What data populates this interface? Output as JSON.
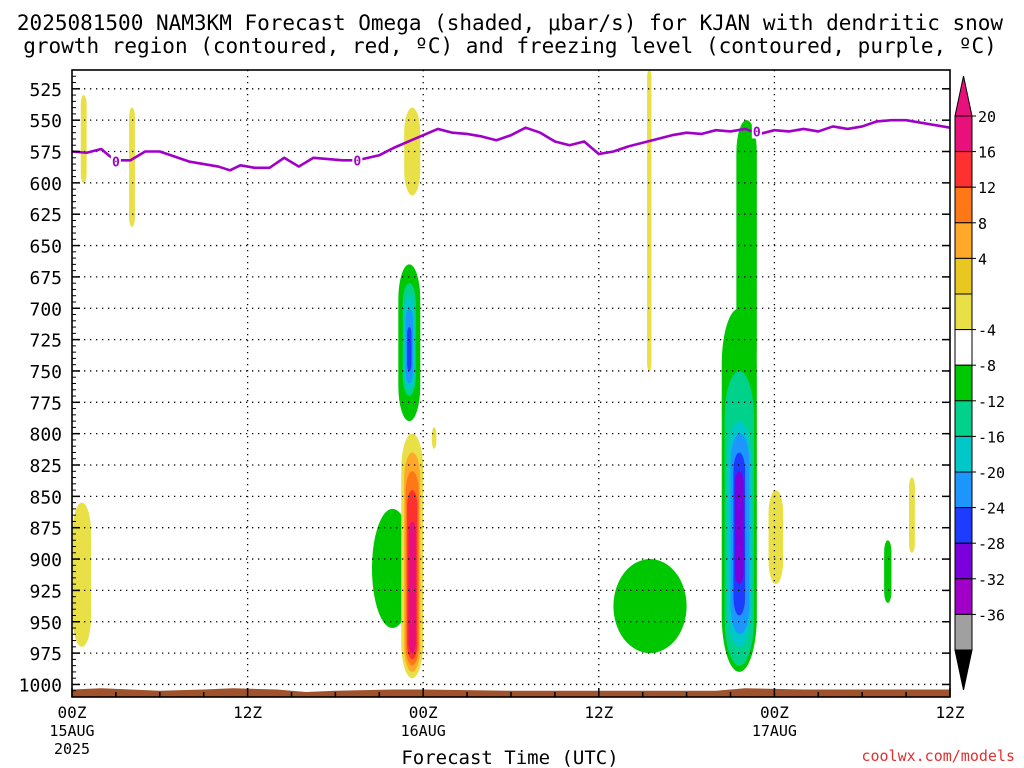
{
  "title": {
    "line1": "2025081500 NAM3KM Forecast Omega (shaded, μbar/s) for KJAN with dendritic snow",
    "line2": "growth region (contoured, red, ºC) and freezing level (contoured, purple, ºC)"
  },
  "xaxis": {
    "label": "Forecast Time (UTC)",
    "ticks": [
      {
        "hours": 0,
        "line1": "00Z",
        "line2": "15AUG",
        "line3": "2025"
      },
      {
        "hours": 12,
        "line1": "12Z",
        "line2": "",
        "line3": ""
      },
      {
        "hours": 24,
        "line1": "00Z",
        "line2": "16AUG",
        "line3": ""
      },
      {
        "hours": 36,
        "line1": "12Z",
        "line2": "",
        "line3": ""
      },
      {
        "hours": 48,
        "line1": "00Z",
        "line2": "17AUG",
        "line3": ""
      },
      {
        "hours": 60,
        "line1": "12Z",
        "line2": "",
        "line3": ""
      }
    ]
  },
  "watermark": "coolwx.com/models",
  "chart_data": {
    "type": "heatmap",
    "title": "2025081500 NAM3KM Forecast Omega (shaded, μbar/s) for KJAN with dendritic snow growth region (contoured, red, ºC) and freezing level (contoured, purple, ºC)",
    "xlabel": "Forecast Time (UTC)",
    "ylabel": "",
    "xlim_hours": [
      0,
      60
    ],
    "ylim_hpa": [
      1010,
      510
    ],
    "y_ticks": [
      525,
      550,
      575,
      600,
      625,
      650,
      675,
      700,
      725,
      750,
      775,
      800,
      825,
      850,
      875,
      900,
      925,
      950,
      975,
      1000
    ],
    "grid": true,
    "colorbar": {
      "labels": [
        "20",
        "16",
        "12",
        "8",
        "4",
        "-4",
        "-8",
        "-12",
        "-16",
        "-20",
        "-24",
        "-28",
        "-32",
        "-36"
      ],
      "bins": [
        {
          "color": "#e8107a"
        },
        {
          "color": "#ff3030"
        },
        {
          "color": "#ff7818"
        },
        {
          "color": "#ffa82a"
        },
        {
          "color": "#e8c820"
        },
        {
          "color": "#e8e046"
        },
        {
          "color": "#ffffff"
        },
        {
          "color": "#00c800"
        },
        {
          "color": "#00d28c"
        },
        {
          "color": "#00c8c8"
        },
        {
          "color": "#1e96ff"
        },
        {
          "color": "#1e3cff"
        },
        {
          "color": "#7a00dc"
        },
        {
          "color": "#a000c8"
        },
        {
          "color": "#a0a0a0"
        }
      ],
      "over_color": "#e8107a",
      "under_color": "#000000"
    },
    "freezing_level": {
      "color": "#a000c8",
      "label": "0",
      "label_positions": [
        [
          3.0,
          583
        ],
        [
          19.5,
          582
        ],
        [
          46.8,
          559
        ]
      ],
      "points": [
        [
          0,
          575
        ],
        [
          1,
          576
        ],
        [
          2,
          573
        ],
        [
          2.5,
          578
        ],
        [
          3,
          582
        ],
        [
          4,
          582
        ],
        [
          5,
          575
        ],
        [
          6,
          575
        ],
        [
          7,
          579
        ],
        [
          8,
          583
        ],
        [
          9,
          585
        ],
        [
          10,
          587
        ],
        [
          10.8,
          590
        ],
        [
          11.5,
          586
        ],
        [
          12.5,
          588
        ],
        [
          13.5,
          588
        ],
        [
          14.5,
          580
        ],
        [
          15.5,
          587
        ],
        [
          16.5,
          580
        ],
        [
          17.5,
          581
        ],
        [
          18.5,
          582
        ],
        [
          19.5,
          582
        ],
        [
          21,
          578
        ],
        [
          22,
          572
        ],
        [
          23,
          567
        ],
        [
          24,
          562
        ],
        [
          25,
          557
        ],
        [
          26,
          560
        ],
        [
          27,
          561
        ],
        [
          28,
          563
        ],
        [
          29,
          566
        ],
        [
          30,
          562
        ],
        [
          31,
          556
        ],
        [
          32,
          560
        ],
        [
          33,
          567
        ],
        [
          34,
          570
        ],
        [
          35,
          567
        ],
        [
          36,
          577
        ],
        [
          37,
          575
        ],
        [
          38,
          571
        ],
        [
          39,
          568
        ],
        [
          40,
          565
        ],
        [
          41,
          562
        ],
        [
          42,
          560
        ],
        [
          43,
          561
        ],
        [
          44,
          558
        ],
        [
          45,
          559
        ],
        [
          46,
          557
        ],
        [
          47,
          561
        ],
        [
          48,
          558
        ],
        [
          49,
          559
        ],
        [
          50,
          557
        ],
        [
          51,
          559
        ],
        [
          52,
          555
        ],
        [
          53,
          557
        ],
        [
          54,
          555
        ],
        [
          55,
          551
        ],
        [
          56,
          550
        ],
        [
          57,
          550
        ],
        [
          58,
          552
        ],
        [
          60,
          556
        ]
      ]
    },
    "terrain": {
      "color": "#a0522d"
    },
    "regions": [
      {
        "x": [
          0.05,
          1.3
        ],
        "y": [
          855,
          970
        ],
        "color": "#e8e046"
      },
      {
        "x": [
          0.6,
          1.0
        ],
        "y": [
          530,
          600
        ],
        "color": "#e8e046"
      },
      {
        "x": [
          3.9,
          4.3
        ],
        "y": [
          540,
          635
        ],
        "color": "#e8e046"
      },
      {
        "x": [
          22.7,
          23.8
        ],
        "y": [
          540,
          610
        ],
        "color": "#e8e046"
      },
      {
        "x": [
          20.5,
          23.3
        ],
        "y": [
          860,
          955
        ],
        "color": "#00c800"
      },
      {
        "x": [
          22.5,
          24.0
        ],
        "y": [
          800,
          995
        ],
        "color": "#e8e046"
      },
      {
        "x": [
          22.7,
          23.8
        ],
        "y": [
          815,
          990
        ],
        "color": "#ffa82a"
      },
      {
        "x": [
          22.8,
          23.7
        ],
        "y": [
          830,
          985
        ],
        "color": "#ff7818"
      },
      {
        "x": [
          22.9,
          23.6
        ],
        "y": [
          845,
          980
        ],
        "color": "#ff3030"
      },
      {
        "x": [
          23.0,
          23.5
        ],
        "y": [
          870,
          975
        ],
        "color": "#e8107a"
      },
      {
        "x": [
          22.3,
          23.8
        ],
        "y": [
          665,
          790
        ],
        "color": "#00c800"
      },
      {
        "x": [
          22.6,
          23.5
        ],
        "y": [
          680,
          770
        ],
        "color": "#00d28c"
      },
      {
        "x": [
          22.7,
          23.4
        ],
        "y": [
          690,
          765
        ],
        "color": "#00c8c8"
      },
      {
        "x": [
          22.8,
          23.3
        ],
        "y": [
          700,
          760
        ],
        "color": "#1e96ff"
      },
      {
        "x": [
          22.9,
          23.2
        ],
        "y": [
          715,
          750
        ],
        "color": "#1e3cff"
      },
      {
        "x": [
          24.6,
          24.9
        ],
        "y": [
          795,
          812
        ],
        "color": "#e8e046"
      },
      {
        "x": [
          37.0,
          42.0
        ],
        "y": [
          900,
          975
        ],
        "color": "#00c800"
      },
      {
        "x": [
          39.3,
          39.6
        ],
        "y": [
          510,
          750
        ],
        "color": "#e8e046"
      },
      {
        "x": [
          44.4,
          46.8
        ],
        "y": [
          700,
          990
        ],
        "color": "#00c800"
      },
      {
        "x": [
          45.4,
          46.8
        ],
        "y": [
          550,
          760
        ],
        "color": "#00c800"
      },
      {
        "x": [
          44.6,
          46.6
        ],
        "y": [
          750,
          985
        ],
        "color": "#00d28c"
      },
      {
        "x": [
          44.8,
          46.4
        ],
        "y": [
          790,
          970
        ],
        "color": "#00c8c8"
      },
      {
        "x": [
          45.0,
          46.3
        ],
        "y": [
          800,
          960
        ],
        "color": "#1e96ff"
      },
      {
        "x": [
          45.2,
          46.0
        ],
        "y": [
          815,
          945
        ],
        "color": "#1e3cff"
      },
      {
        "x": [
          45.3,
          45.9
        ],
        "y": [
          830,
          920
        ],
        "color": "#7a00dc"
      },
      {
        "x": [
          47.6,
          48.6
        ],
        "y": [
          845,
          920
        ],
        "color": "#e8e046"
      },
      {
        "x": [
          55.5,
          56.0
        ],
        "y": [
          885,
          935
        ],
        "color": "#00c800"
      },
      {
        "x": [
          57.2,
          57.6
        ],
        "y": [
          835,
          895
        ],
        "color": "#e8e046"
      }
    ]
  }
}
